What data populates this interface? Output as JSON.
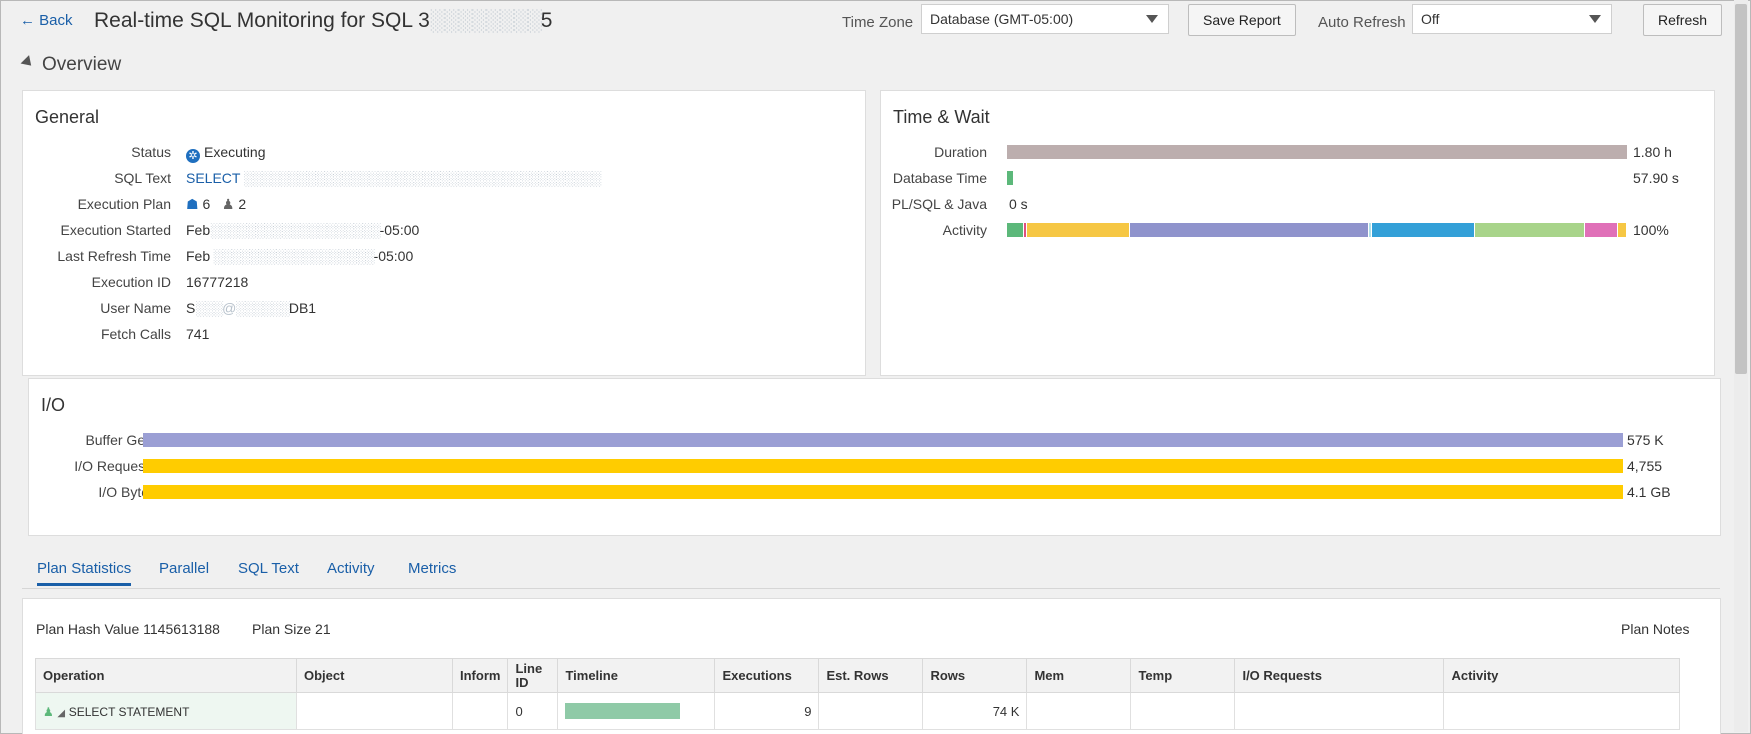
{
  "header": {
    "back_label": "← Back",
    "title": "Real-time SQL Monitoring for SQL 3",
    "title_tail": "5",
    "timezone_label": "Time Zone",
    "timezone_value": "Database (GMT-05:00)",
    "save_report_label": "Save Report",
    "auto_refresh_label": "Auto Refresh",
    "auto_refresh_value": "Off",
    "refresh_label": "Refresh"
  },
  "overview": {
    "label": "Overview"
  },
  "general": {
    "title": "General",
    "status_label": "Status",
    "status_value": "Executing",
    "sql_text_label": "SQL Text",
    "sql_text_value": "SELECT",
    "execution_plan_label": "Execution Plan",
    "execution_plan_parallel": "6",
    "execution_plan_instances": "2",
    "execution_started_label": "Execution Started",
    "execution_started_prefix": "Feb",
    "execution_started_suffix": "-05:00",
    "last_refresh_label": "Last Refresh Time",
    "last_refresh_prefix": "Feb",
    "last_refresh_suffix": "-05:00",
    "execution_id_label": "Execution ID",
    "execution_id_value": "16777218",
    "user_name_label": "User Name",
    "user_name_prefix": "S",
    "user_name_suffix": "DB1",
    "fetch_calls_label": "Fetch Calls",
    "fetch_calls_value": "741"
  },
  "time_wait": {
    "title": "Time & Wait",
    "duration_label": "Duration",
    "duration_value": "1.80 h",
    "duration_fraction": 1.0,
    "db_time_label": "Database Time",
    "db_time_value": "57.90 s",
    "db_time_fraction": 0.009,
    "plsql_label": "PL/SQL & Java",
    "plsql_value": "0 s",
    "activity_label": "Activity",
    "activity_value": "100%",
    "activity_segments": [
      {
        "fraction": 0.028,
        "color": "#5cb87a"
      },
      {
        "fraction": 0.004,
        "color": "#e05080"
      },
      {
        "fraction": 0.166,
        "color": "#f6c744"
      },
      {
        "fraction": 0.386,
        "color": "#8f93cc"
      },
      {
        "fraction": 0.004,
        "color": "#b0e0e8"
      },
      {
        "fraction": 0.167,
        "color": "#33a0d8"
      },
      {
        "fraction": 0.177,
        "color": "#a8d48a"
      },
      {
        "fraction": 0.054,
        "color": "#e070b8"
      },
      {
        "fraction": 0.014,
        "color": "#f6c744"
      }
    ]
  },
  "io": {
    "title": "I/O",
    "buffer_gets_label": "Buffer Gets",
    "buffer_gets_value": "575 K",
    "buffer_gets_color": "#9b9fd4",
    "io_requests_label": "I/O Requests",
    "io_requests_value": "4,755",
    "io_requests_color": "#ffcc00",
    "io_bytes_label": "I/O Bytes",
    "io_bytes_value": "4.1 GB",
    "io_bytes_color": "#ffcc00"
  },
  "tabs": [
    {
      "label": "Plan Statistics"
    },
    {
      "label": "Parallel"
    },
    {
      "label": "SQL Text"
    },
    {
      "label": "Activity"
    },
    {
      "label": "Metrics"
    }
  ],
  "plan": {
    "hash_label": "Plan Hash Value 1145613188",
    "size_label": "Plan Size 21",
    "notes_label": "Plan Notes",
    "columns": [
      "Operation",
      "Object",
      "Inform",
      "Line ID",
      "Timeline",
      "Executions",
      "Est. Rows",
      "Rows",
      "Mem",
      "Temp",
      "I/O Requests",
      "Activity"
    ],
    "rows": [
      {
        "operation": "SELECT STATEMENT",
        "object": "",
        "inform": "",
        "line_id": "0",
        "timeline_fraction": 0.82,
        "executions": "9",
        "est_rows": "",
        "rows": "74 K",
        "mem": "",
        "temp": "",
        "io_requests": "",
        "activity": ""
      }
    ]
  },
  "colors": {
    "duration_bar": "#bcaeae",
    "db_time_bar": "#5cb87a",
    "timeline_bar": "#8fcaa7",
    "link": "#1a5fa8"
  }
}
